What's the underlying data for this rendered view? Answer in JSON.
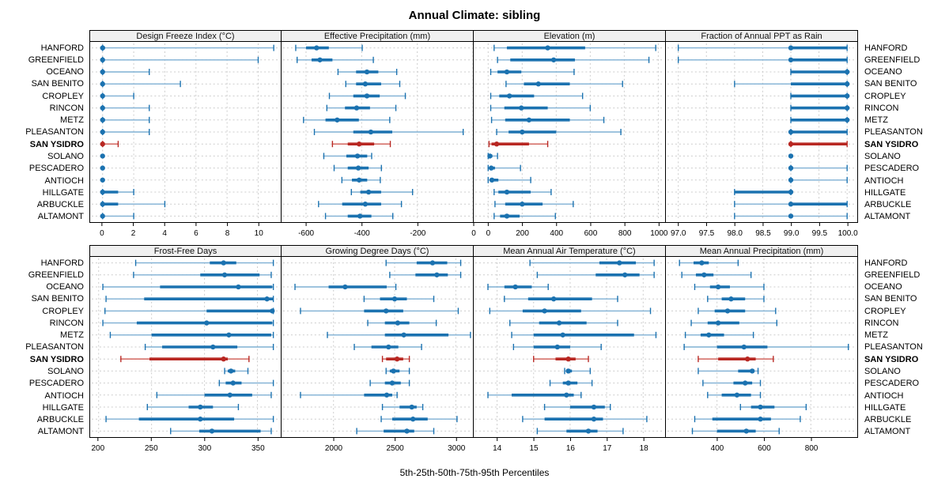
{
  "title": "Annual Climate: sibling",
  "footer": "5th-25th-50th-75th-95th Percentiles",
  "colors": {
    "normal": "#1b72b0",
    "normal_light": "#7fb0d4",
    "highlight": "#b82722",
    "highlight_light": "#cf5a52",
    "strip_bg": "#f0f0f0",
    "grid": "#cccccc",
    "border": "#000000"
  },
  "chart_data": {
    "type": "scatter",
    "subtype": "percentile-interval-trellis",
    "title": "Annual Climate: sibling",
    "xlabel": "5th-25th-50th-75th-95th Percentiles",
    "percentiles": [
      5,
      25,
      50,
      75,
      95
    ],
    "stations": [
      "HANFORD",
      "GREENFIELD",
      "OCEANO",
      "SAN BENITO",
      "CROPLEY",
      "RINCON",
      "METZ",
      "PLEASANTON",
      "SAN YSIDRO",
      "SOLANO",
      "PESCADERO",
      "ANTIOCH",
      "HILLGATE",
      "ARBUCKLE",
      "ALTAMONT"
    ],
    "highlight_station": "SAN YSIDRO",
    "layout": {
      "rows": 2,
      "cols": 4,
      "grid": "dashed",
      "station_labels": "both-sides"
    },
    "panels": [
      {
        "title": "Design Freeze Index (°C)",
        "axis_ticks": [
          "0",
          "2",
          "4",
          "6",
          "8",
          "10"
        ],
        "axis_range": [
          -0.8,
          11.45
        ],
        "values": [
          [
            0,
            0,
            0,
            0.15,
            11
          ],
          [
            0,
            0,
            0,
            0.1,
            10
          ],
          [
            0,
            0,
            0,
            0.1,
            3
          ],
          [
            0,
            0,
            0,
            0.1,
            5
          ],
          [
            0,
            0,
            0,
            0.1,
            2
          ],
          [
            0,
            0,
            0,
            0.1,
            3
          ],
          [
            0,
            0,
            0,
            0.15,
            3
          ],
          [
            0,
            0,
            0,
            0.1,
            3
          ],
          [
            0,
            0,
            0,
            0.1,
            1
          ],
          [
            0,
            0,
            0,
            0,
            0
          ],
          [
            0,
            0,
            0,
            0,
            0
          ],
          [
            0,
            0,
            0,
            0,
            0
          ],
          [
            0,
            0,
            0,
            1,
            2
          ],
          [
            0,
            0,
            0,
            1,
            4
          ],
          [
            0,
            0,
            0,
            0.1,
            2
          ]
        ]
      },
      {
        "title": "Effective Precipitation (mm)",
        "axis_ticks": [
          "-600",
          "-400",
          "-200",
          "0"
        ],
        "axis_range": [
          -688,
          0
        ],
        "values": [
          [
            -637,
            -600,
            -562,
            -518,
            -398
          ],
          [
            -632,
            -580,
            -550,
            -505,
            -358
          ],
          [
            -485,
            -420,
            -381,
            -340,
            -274
          ],
          [
            -457,
            -420,
            -387,
            -330,
            -263
          ],
          [
            -516,
            -430,
            -381,
            -335,
            -243
          ],
          [
            -525,
            -460,
            -418,
            -370,
            -277
          ],
          [
            -609,
            -530,
            -488,
            -410,
            -299
          ],
          [
            -570,
            -430,
            -367,
            -290,
            -35
          ],
          [
            -505,
            -450,
            -409,
            -355,
            -297
          ],
          [
            -536,
            -455,
            -415,
            -380,
            -364
          ],
          [
            -499,
            -450,
            -412,
            -375,
            -329
          ],
          [
            -471,
            -435,
            -409,
            -380,
            -333
          ],
          [
            -437,
            -405,
            -375,
            -330,
            -217
          ],
          [
            -555,
            -470,
            -387,
            -330,
            -257
          ],
          [
            -530,
            -450,
            -406,
            -365,
            -288
          ]
        ]
      },
      {
        "title": "Elevation (m)",
        "axis_ticks": [
          "0",
          "200",
          "400",
          "600",
          "800",
          "1000"
        ],
        "axis_range": [
          -85,
          1040
        ],
        "values": [
          [
            35,
            110,
            350,
            570,
            985
          ],
          [
            55,
            130,
            385,
            510,
            945
          ],
          [
            15,
            55,
            110,
            195,
            505
          ],
          [
            105,
            210,
            295,
            480,
            790
          ],
          [
            15,
            65,
            125,
            270,
            555
          ],
          [
            15,
            95,
            195,
            350,
            600
          ],
          [
            20,
            100,
            240,
            480,
            680
          ],
          [
            50,
            120,
            200,
            400,
            780
          ],
          [
            5,
            20,
            50,
            240,
            350
          ],
          [
            0,
            5,
            10,
            25,
            55
          ],
          [
            0,
            8,
            18,
            40,
            190
          ],
          [
            0,
            10,
            22,
            60,
            250
          ],
          [
            35,
            60,
            110,
            250,
            370
          ],
          [
            40,
            100,
            200,
            320,
            500
          ],
          [
            35,
            70,
            110,
            185,
            395
          ]
        ]
      },
      {
        "title": "Fraction of Annual PPT as Rain",
        "axis_ticks": [
          "97.0",
          "97.5",
          "98.0",
          "98.5",
          "99.0",
          "99.5",
          "100.0"
        ],
        "axis_range": [
          96.78,
          100.18
        ],
        "values": [
          [
            97,
            99,
            99,
            100,
            100
          ],
          [
            97,
            99,
            99,
            100,
            100
          ],
          [
            99,
            99,
            100,
            100,
            100
          ],
          [
            98,
            99,
            100,
            100,
            100
          ],
          [
            99,
            99,
            100,
            100,
            100
          ],
          [
            99,
            99,
            100,
            100,
            100
          ],
          [
            99,
            99,
            100,
            100,
            100
          ],
          [
            99,
            99,
            99,
            100,
            100
          ],
          [
            99,
            99,
            99,
            100,
            100
          ],
          [
            99,
            99,
            99,
            99,
            99
          ],
          [
            99,
            99,
            99,
            99,
            100
          ],
          [
            99,
            99,
            99,
            99,
            100
          ],
          [
            98,
            98,
            99,
            99,
            99
          ],
          [
            98,
            99,
            99,
            100,
            100
          ],
          [
            98,
            99,
            99,
            99,
            100
          ]
        ]
      },
      {
        "title": "Frost-Free Days",
        "axis_ticks": [
          "200",
          "250",
          "300",
          "350"
        ],
        "axis_range": [
          192,
          372
        ],
        "values": [
          [
            235,
            305,
            318,
            330,
            365
          ],
          [
            233,
            296,
            319,
            352,
            363
          ],
          [
            204,
            258,
            332,
            364,
            365
          ],
          [
            207,
            243,
            359,
            365,
            365
          ],
          [
            206,
            302,
            364,
            365,
            365
          ],
          [
            204,
            236,
            302,
            364,
            365
          ],
          [
            211,
            250,
            323,
            363,
            365
          ],
          [
            244,
            260,
            308,
            331,
            365
          ],
          [
            221,
            248,
            318,
            322,
            342
          ],
          [
            319,
            322,
            325,
            329,
            341
          ],
          [
            314,
            320,
            327,
            335,
            365
          ],
          [
            255,
            300,
            324,
            345,
            363
          ],
          [
            246,
            285,
            296,
            308,
            332
          ],
          [
            207,
            238,
            296,
            328,
            365
          ],
          [
            268,
            295,
            307,
            353,
            363
          ]
        ]
      },
      {
        "title": "Growing Degree Days (°C)",
        "axis_ticks": [
          "2000",
          "2500",
          "3000"
        ],
        "axis_range": [
          1575,
          3140
        ],
        "values": [
          [
            2430,
            2680,
            2810,
            2930,
            3040
          ],
          [
            2460,
            2670,
            2845,
            2935,
            3040
          ],
          [
            1685,
            1960,
            2095,
            2435,
            2510
          ],
          [
            2250,
            2380,
            2500,
            2600,
            2820
          ],
          [
            1730,
            2250,
            2430,
            2570,
            3020
          ],
          [
            2280,
            2420,
            2525,
            2620,
            2840
          ],
          [
            1950,
            2420,
            2575,
            2940,
            3120
          ],
          [
            2170,
            2310,
            2450,
            2530,
            2720
          ],
          [
            2400,
            2430,
            2520,
            2570,
            2620
          ],
          [
            2430,
            2460,
            2490,
            2540,
            2620
          ],
          [
            2300,
            2420,
            2480,
            2550,
            2620
          ],
          [
            1730,
            2250,
            2435,
            2480,
            2520
          ],
          [
            2400,
            2540,
            2640,
            2680,
            2730
          ],
          [
            2390,
            2480,
            2650,
            2770,
            3010
          ],
          [
            2190,
            2410,
            2600,
            2660,
            2820
          ]
        ]
      },
      {
        "title": "Mean Annual Air Temperature (°C)",
        "axis_ticks": [
          "14",
          "15",
          "16",
          "17",
          "18"
        ],
        "axis_range": [
          13.36,
          18.6
        ],
        "values": [
          [
            14.9,
            16.8,
            17.35,
            17.8,
            18.3
          ],
          [
            15.1,
            16.7,
            17.5,
            17.9,
            18.3
          ],
          [
            13.75,
            14.2,
            14.5,
            14.95,
            15.4
          ],
          [
            14.2,
            14.85,
            15.55,
            16.6,
            17.3
          ],
          [
            13.8,
            14.7,
            15.3,
            16.3,
            18.2
          ],
          [
            14.35,
            15.15,
            15.7,
            16.45,
            17.3
          ],
          [
            14.4,
            15.0,
            15.8,
            17.75,
            18.35
          ],
          [
            14.45,
            15.0,
            15.65,
            16.0,
            16.85
          ],
          [
            15.0,
            15.6,
            15.95,
            16.15,
            16.5
          ],
          [
            15.85,
            15.9,
            15.95,
            16.05,
            16.55
          ],
          [
            15.45,
            15.8,
            15.95,
            16.2,
            16.6
          ],
          [
            13.75,
            14.4,
            15.9,
            16.1,
            16.3
          ],
          [
            15.3,
            16.0,
            16.65,
            16.95,
            17.1
          ],
          [
            14.7,
            15.3,
            16.65,
            16.9,
            18.1
          ],
          [
            15.1,
            15.9,
            16.5,
            16.75,
            17.45
          ]
        ]
      },
      {
        "title": "Mean Annual Precipitation (mm)",
        "axis_ticks": [
          "400",
          "600",
          "800"
        ],
        "axis_range": [
          182,
          998
        ],
        "values": [
          [
            240,
            300,
            335,
            365,
            490
          ],
          [
            250,
            310,
            345,
            385,
            545
          ],
          [
            305,
            370,
            405,
            455,
            600
          ],
          [
            360,
            420,
            460,
            520,
            600
          ],
          [
            320,
            390,
            445,
            520,
            650
          ],
          [
            290,
            360,
            405,
            495,
            655
          ],
          [
            265,
            330,
            365,
            430,
            555
          ],
          [
            260,
            400,
            515,
            615,
            960
          ],
          [
            320,
            405,
            530,
            565,
            640
          ],
          [
            320,
            490,
            550,
            560,
            575
          ],
          [
            340,
            470,
            520,
            550,
            585
          ],
          [
            360,
            420,
            485,
            545,
            585
          ],
          [
            500,
            545,
            585,
            645,
            780
          ],
          [
            305,
            380,
            585,
            630,
            755
          ],
          [
            295,
            400,
            525,
            565,
            665
          ]
        ]
      }
    ]
  }
}
